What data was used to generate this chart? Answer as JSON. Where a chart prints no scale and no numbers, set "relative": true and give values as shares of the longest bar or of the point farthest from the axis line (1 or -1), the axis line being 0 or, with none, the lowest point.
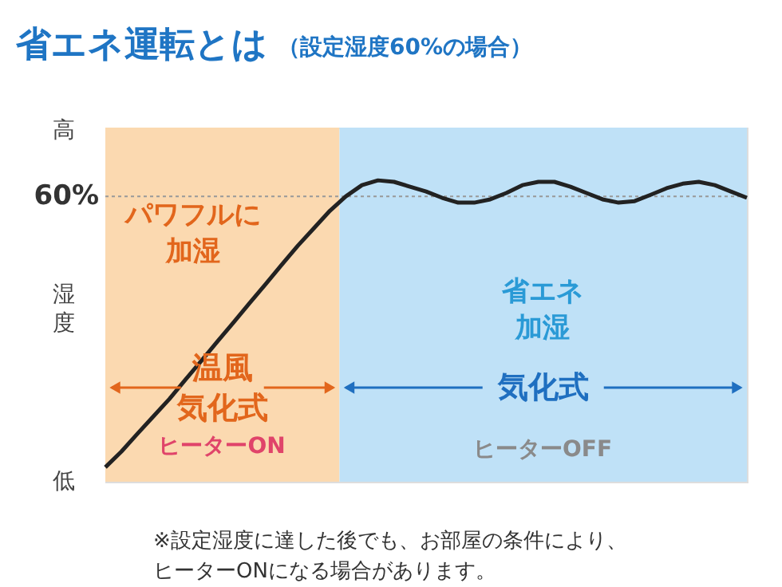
{
  "chart_data": {
    "type": "line",
    "title": "省エネ運転とは",
    "subtitle": "（設定湿度60%の場合）",
    "ylabel": "湿度",
    "relative": true,
    "tick_labels": false,
    "categories": [
      null,
      null,
      null,
      null,
      null,
      null,
      null,
      null,
      null,
      null,
      null,
      null,
      null,
      null,
      null,
      null,
      null,
      null,
      null,
      null,
      null,
      null,
      null,
      null,
      null,
      null,
      null,
      null,
      null,
      null,
      null,
      null,
      null,
      null,
      null,
      null,
      null,
      null,
      null,
      null,
      null
    ],
    "series": [
      {
        "color": "#222222",
        "values": [
          0.048,
          0.1,
          0.159,
          0.217,
          0.275,
          0.339,
          0.402,
          0.466,
          0.529,
          0.593,
          0.656,
          0.72,
          0.783,
          0.841,
          0.899,
          0.947,
          0.984,
          1.0,
          0.995,
          0.979,
          0.963,
          0.942,
          0.926,
          0.926,
          0.937,
          0.958,
          0.984,
          0.995,
          0.995,
          0.979,
          0.958,
          0.937,
          0.926,
          0.931,
          0.952,
          0.974,
          0.989,
          0.995,
          0.984,
          0.963,
          0.942
        ]
      }
    ],
    "marker": "none",
    "line_style": "solid",
    "ref_lines": [
      {
        "axis": "y",
        "value": 0.947,
        "color": "#999999",
        "line_style": "dotted"
      }
    ],
    "annotations": [
      "パワフルに加湿",
      "省エネ加湿",
      "ヒーターON",
      "ヒーターOFF",
      "※設定湿度に達した後でも、お部屋の条件により、ヒーターONになる場合があります。",
      "高",
      "低",
      "60%",
      "温風気化式",
      "気化式"
    ]
  }
}
